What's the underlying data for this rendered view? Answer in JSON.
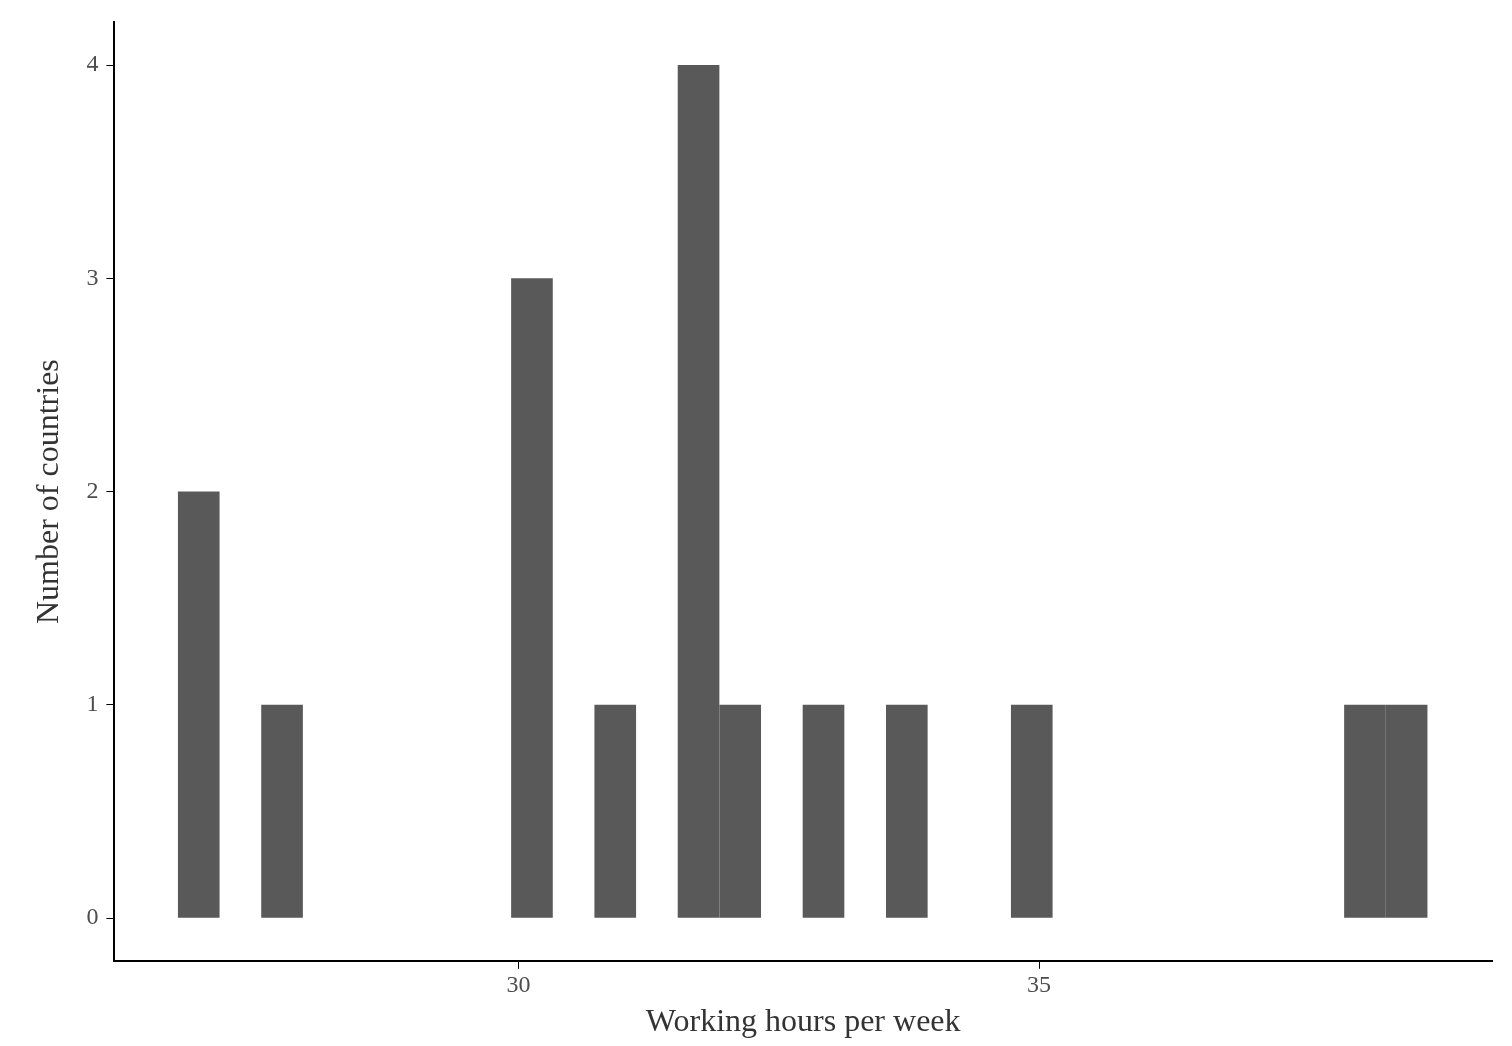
{
  "chart_data": {
    "type": "histogram",
    "xlabel": "Working hours per week",
    "ylabel": "Number of countries",
    "bins": [
      26.73,
      27.13,
      27.53,
      27.93,
      28.33,
      28.73,
      29.13,
      29.53,
      29.93,
      30.33,
      30.73,
      31.13,
      31.53,
      31.93,
      32.33,
      32.73,
      33.13,
      33.53,
      33.93,
      34.33,
      34.73,
      35.13,
      35.53,
      35.93,
      36.33,
      36.73,
      37.13,
      37.53,
      37.93,
      38.33,
      38.73
    ],
    "values": [
      2,
      0,
      1,
      0,
      0,
      0,
      0,
      0,
      3,
      0,
      1,
      0,
      4,
      1,
      0,
      1,
      0,
      1,
      0,
      0,
      1,
      0,
      0,
      0,
      0,
      0,
      0,
      0,
      1,
      1
    ],
    "color": "#595959",
    "xlim": [
      26.12,
      39.35
    ],
    "xticks": [
      30,
      35
    ],
    "ylim": [
      -0.2,
      4.2
    ],
    "yticks": [
      0,
      1,
      2,
      3,
      4
    ],
    "grid": false,
    "legend": false
  }
}
